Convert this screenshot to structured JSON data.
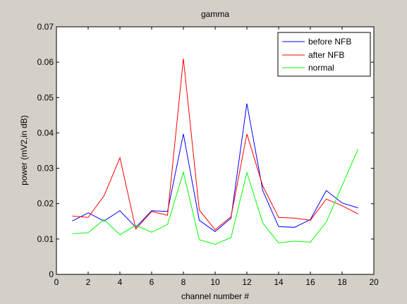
{
  "chart_data": {
    "type": "line",
    "title": "gamma",
    "xlabel": "channel number #",
    "ylabel": "power (mV2,in dB)",
    "xlim": [
      0,
      20
    ],
    "ylim": [
      0,
      0.07
    ],
    "xticks": [
      "0",
      "2",
      "4",
      "6",
      "8",
      "10",
      "12",
      "14",
      "16",
      "18",
      "20"
    ],
    "yticks": [
      "0",
      "0.01",
      "0.02",
      "0.03",
      "0.04",
      "0.05",
      "0.06",
      "0.07"
    ],
    "grid": false,
    "legend_position": "top-right",
    "x": [
      1,
      2,
      3,
      4,
      5,
      6,
      7,
      8,
      9,
      10,
      11,
      12,
      13,
      14,
      15,
      16,
      17,
      18,
      19
    ],
    "series": [
      {
        "name": "before NFB",
        "color": "#0000ff",
        "values": [
          0.0151,
          0.0174,
          0.0151,
          0.018,
          0.0133,
          0.018,
          0.0178,
          0.0397,
          0.0153,
          0.0121,
          0.0159,
          0.0483,
          0.0237,
          0.0135,
          0.0133,
          0.0155,
          0.0237,
          0.0202,
          0.0188
        ]
      },
      {
        "name": "after NFB",
        "color": "#ff0000",
        "values": [
          0.0165,
          0.0161,
          0.0222,
          0.033,
          0.0128,
          0.0178,
          0.0167,
          0.061,
          0.0182,
          0.0126,
          0.0163,
          0.0397,
          0.025,
          0.0161,
          0.0159,
          0.0153,
          0.0213,
          0.0194,
          0.0171
        ]
      },
      {
        "name": "normal",
        "color": "#00ff00",
        "values": [
          0.0115,
          0.0118,
          0.0155,
          0.0112,
          0.0139,
          0.0119,
          0.0141,
          0.0289,
          0.0098,
          0.0085,
          0.0104,
          0.0288,
          0.0145,
          0.0089,
          0.0094,
          0.0091,
          0.0148,
          0.0251,
          0.0354
        ]
      }
    ]
  }
}
